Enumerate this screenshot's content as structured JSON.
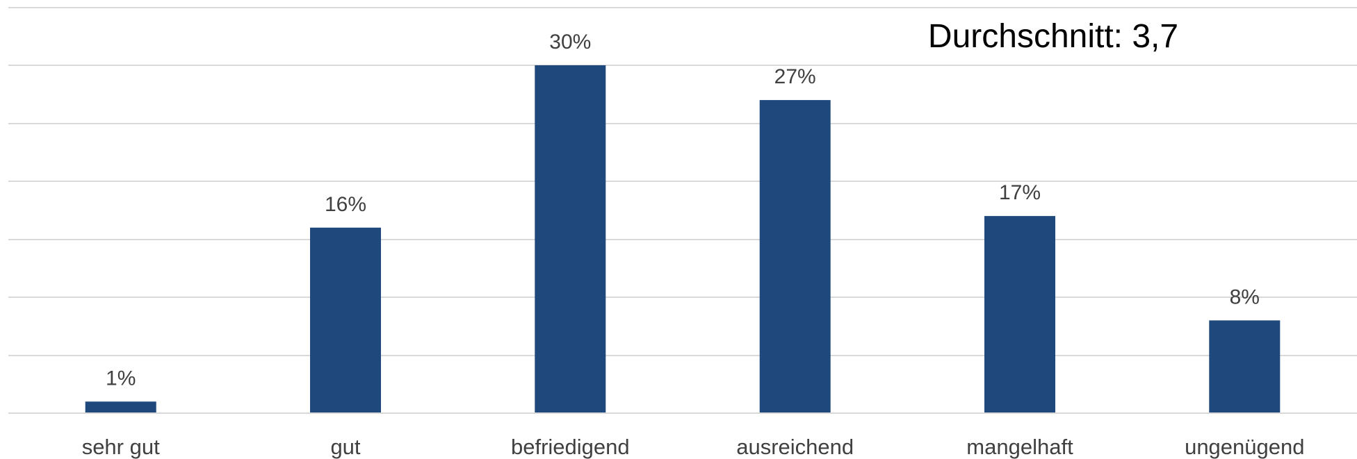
{
  "chart_data": {
    "type": "bar",
    "categories": [
      "sehr gut",
      "gut",
      "befriedigend",
      "ausreichend",
      "mangelhaft",
      "ungenügend"
    ],
    "values": [
      1,
      16,
      30,
      27,
      17,
      8
    ],
    "value_labels": [
      "1%",
      "16%",
      "30%",
      "27%",
      "17%",
      "8%"
    ],
    "annotation": "Durchschnitt: 3,7",
    "title": "",
    "xlabel": "",
    "ylabel": "",
    "ylim": [
      0,
      35
    ],
    "y_axis_labels_visible": false,
    "grid": true,
    "bar_color": "#1f497d",
    "grid_color": "#d9d9d9",
    "label_color": "#404040"
  }
}
